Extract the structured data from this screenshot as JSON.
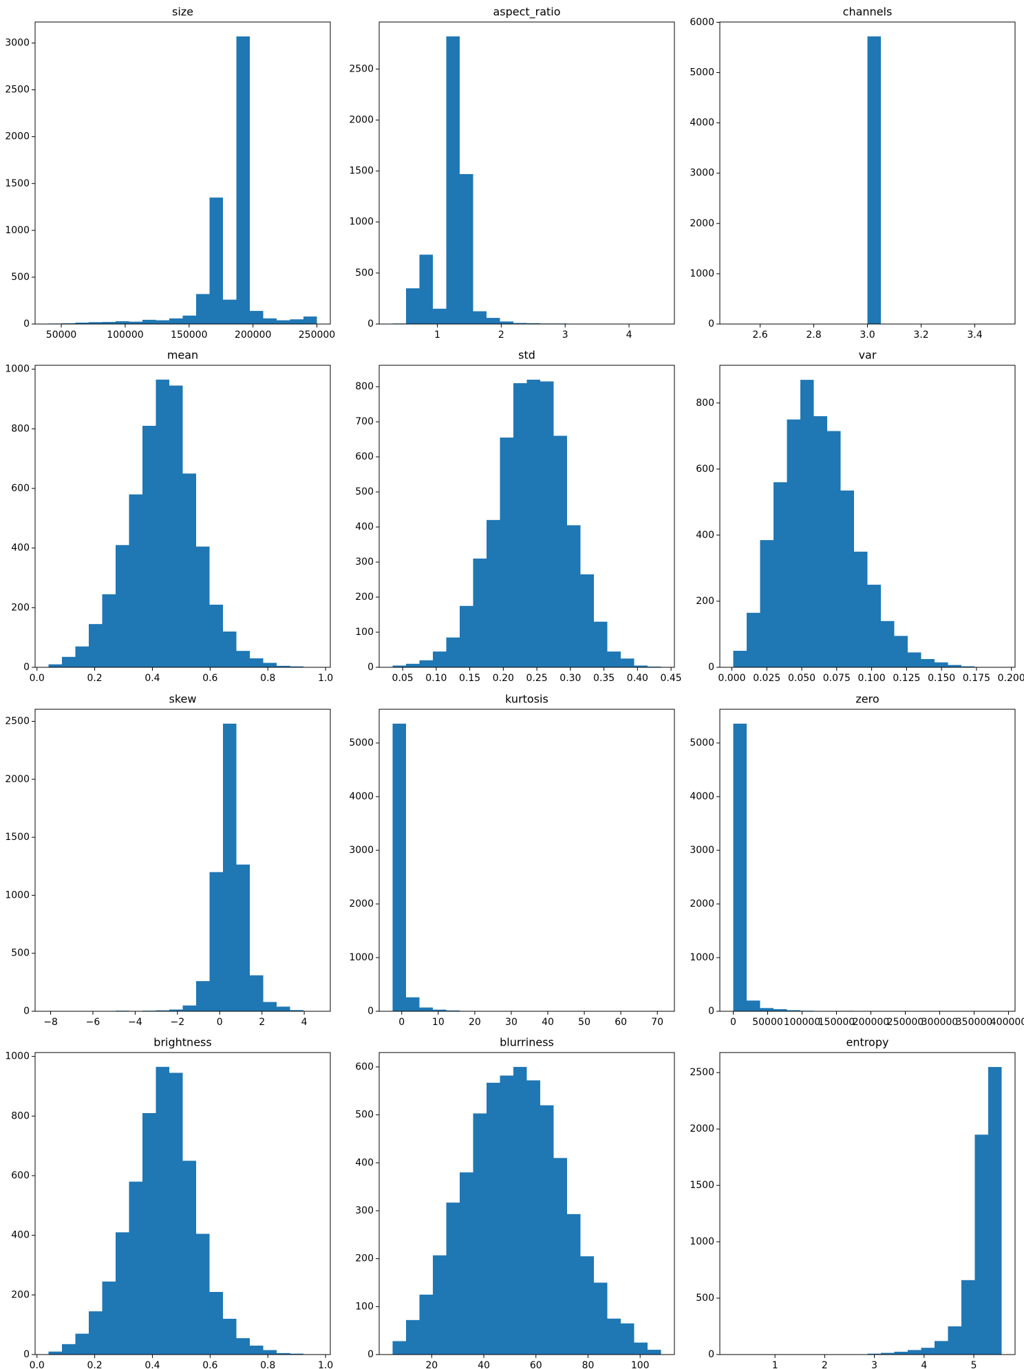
{
  "chart_data": [
    {
      "type": "histogram",
      "title": "size",
      "color": "#1f77b4",
      "bins": [
        40000,
        50500,
        61000,
        71500,
        82000,
        92500,
        103000,
        113500,
        124000,
        134500,
        145000,
        155500,
        166000,
        176500,
        187000,
        197500,
        208000,
        218500,
        229000,
        239500,
        250000
      ],
      "values": [
        5,
        8,
        15,
        20,
        22,
        30,
        25,
        45,
        40,
        60,
        90,
        320,
        1350,
        260,
        3070,
        140,
        60,
        40,
        50,
        80
      ],
      "xlim": [
        29500,
        260500
      ],
      "ylim": [
        0,
        3224
      ],
      "xticks": [
        50000,
        100000,
        150000,
        200000,
        250000
      ],
      "yticks": [
        0,
        500,
        1000,
        1500,
        2000,
        2500,
        3000
      ]
    },
    {
      "type": "histogram",
      "title": "aspect_ratio",
      "color": "#1f77b4",
      "bins": [
        0.3,
        0.51,
        0.72,
        0.93,
        1.14,
        1.35,
        1.56,
        1.77,
        1.98,
        2.19,
        2.4,
        2.61,
        2.82,
        3.03,
        3.24,
        3.45,
        3.66,
        3.87,
        4.08,
        4.29,
        4.5
      ],
      "values": [
        5,
        350,
        680,
        150,
        2820,
        1470,
        125,
        60,
        25,
        10,
        8,
        5,
        5,
        3,
        3,
        2,
        1,
        1,
        1,
        2
      ],
      "xlim": [
        0.09,
        4.71
      ],
      "ylim": [
        0,
        2961
      ],
      "xticks": [
        1,
        2,
        3,
        4
      ],
      "yticks": [
        0,
        500,
        1000,
        1500,
        2000,
        2500
      ]
    },
    {
      "type": "histogram",
      "title": "channels",
      "color": "#1f77b4",
      "bins": [
        2.5,
        2.55,
        2.6,
        2.65,
        2.7,
        2.75,
        2.8,
        2.85,
        2.9,
        2.95,
        3.0,
        3.05,
        3.1,
        3.15,
        3.2,
        3.25,
        3.3,
        3.35,
        3.4,
        3.45,
        3.5
      ],
      "values": [
        0,
        0,
        0,
        0,
        0,
        0,
        0,
        0,
        0,
        0,
        5720,
        0,
        0,
        0,
        0,
        0,
        0,
        0,
        0,
        0
      ],
      "xlim": [
        2.45,
        3.55
      ],
      "ylim": [
        0,
        6006
      ],
      "xticks": [
        2.6,
        2.8,
        {
          "value": 3,
          "label": "3.0"
        },
        3.2,
        3.4
      ],
      "yticks": [
        0,
        1000,
        2000,
        3000,
        4000,
        5000,
        6000
      ]
    },
    {
      "type": "histogram",
      "title": "mean",
      "color": "#1f77b4",
      "bins": [
        0.04,
        0.0865,
        0.133,
        0.1795,
        0.226,
        0.2725,
        0.319,
        0.3655,
        0.412,
        0.4585,
        0.505,
        0.5515,
        0.598,
        0.6445,
        0.691,
        0.7375,
        0.784,
        0.8305,
        0.877,
        0.9235,
        0.97
      ],
      "values": [
        10,
        35,
        70,
        145,
        245,
        410,
        580,
        810,
        965,
        945,
        650,
        405,
        210,
        120,
        55,
        30,
        15,
        5,
        3,
        1
      ],
      "xlim": [
        -0.0065,
        1.0165
      ],
      "ylim": [
        0,
        1013
      ],
      "xticks": [
        {
          "value": 0,
          "label": "0.0"
        },
        0.2,
        0.4,
        0.6,
        0.8,
        {
          "value": 1,
          "label": "1.0"
        }
      ],
      "yticks": [
        0,
        200,
        400,
        600,
        800,
        1000
      ]
    },
    {
      "type": "histogram",
      "title": "std",
      "color": "#1f77b4",
      "bins": [
        0.035,
        0.055,
        0.075,
        0.095,
        0.115,
        0.135,
        0.155,
        0.175,
        0.195,
        0.215,
        0.235,
        0.255,
        0.275,
        0.295,
        0.315,
        0.335,
        0.355,
        0.375,
        0.395,
        0.415,
        0.435
      ],
      "values": [
        5,
        10,
        20,
        45,
        85,
        175,
        310,
        420,
        655,
        810,
        820,
        815,
        660,
        405,
        265,
        130,
        45,
        25,
        5,
        2
      ],
      "xlim": [
        0.015,
        0.455
      ],
      "ylim": [
        0,
        861
      ],
      "xticks": [
        0.05,
        {
          "value": 0.1,
          "label": "0.10"
        },
        0.15,
        {
          "value": 0.2,
          "label": "0.20"
        },
        0.25,
        {
          "value": 0.3,
          "label": "0.30"
        },
        0.35,
        {
          "value": 0.4,
          "label": "0.40"
        },
        0.45
      ],
      "yticks": [
        0,
        100,
        200,
        300,
        400,
        500,
        600,
        700,
        800
      ]
    },
    {
      "type": "histogram",
      "title": "var",
      "color": "#1f77b4",
      "bins": [
        0.001,
        0.0106,
        0.0202,
        0.0298,
        0.0394,
        0.049,
        0.0586,
        0.0682,
        0.0778,
        0.0874,
        0.097,
        0.1066,
        0.1162,
        0.1258,
        0.1354,
        0.145,
        0.1546,
        0.1642,
        0.1738,
        0.1834,
        0.193
      ],
      "values": [
        50,
        165,
        385,
        560,
        750,
        870,
        760,
        715,
        535,
        350,
        250,
        140,
        95,
        45,
        25,
        15,
        7,
        3,
        1,
        1
      ],
      "xlim": [
        -0.0086,
        0.2026
      ],
      "ylim": [
        0,
        914
      ],
      "xticks": [
        {
          "value": 0,
          "label": "0.000"
        },
        0.025,
        {
          "value": 0.05,
          "label": "0.050"
        },
        0.075,
        {
          "value": 0.1,
          "label": "0.100"
        },
        0.125,
        {
          "value": 0.15,
          "label": "0.150"
        },
        0.175,
        {
          "value": 0.2,
          "label": "0.200"
        }
      ],
      "yticks": [
        0,
        200,
        400,
        600,
        800
      ]
    },
    {
      "type": "histogram",
      "title": "skew",
      "color": "#1f77b4",
      "bins": [
        -8.1,
        -7.465,
        -6.83,
        -6.195,
        -5.56,
        -4.925,
        -4.29,
        -3.655,
        -3.02,
        -2.385,
        -1.75,
        -1.115,
        -0.48,
        0.155,
        0.79,
        1.425,
        2.06,
        2.695,
        3.33,
        3.965,
        4.6
      ],
      "values": [
        1,
        0,
        1,
        1,
        2,
        5,
        3,
        5,
        8,
        15,
        50,
        260,
        1200,
        2480,
        1265,
        310,
        80,
        40,
        10,
        2
      ],
      "xlim": [
        -8.735,
        5.235
      ],
      "ylim": [
        0,
        2604
      ],
      "xticks": [
        {
          "value": -8,
          "label": "−8"
        },
        {
          "value": -6,
          "label": "−6"
        },
        {
          "value": -4,
          "label": "−4"
        },
        {
          "value": -2,
          "label": "−2"
        },
        0,
        2,
        4
      ],
      "yticks": [
        0,
        500,
        1000,
        1500,
        2000,
        2500
      ]
    },
    {
      "type": "histogram",
      "title": "kurtosis",
      "color": "#1f77b4",
      "bins": [
        -2.5,
        1.175,
        4.85,
        8.525,
        12.2,
        15.875,
        19.55,
        23.225,
        26.9,
        30.575,
        34.25,
        37.925,
        41.6,
        45.275,
        48.95,
        52.625,
        56.3,
        59.975,
        63.65,
        67.325,
        71
      ],
      "values": [
        5360,
        260,
        70,
        30,
        15,
        7,
        4,
        3,
        2,
        1,
        1,
        1,
        0,
        0,
        0,
        0,
        0,
        0,
        0,
        1
      ],
      "xlim": [
        -6.175,
        74.675
      ],
      "ylim": [
        0,
        5628
      ],
      "xticks": [
        0,
        10,
        20,
        30,
        40,
        50,
        60,
        70
      ],
      "yticks": [
        0,
        1000,
        2000,
        3000,
        4000,
        5000
      ]
    },
    {
      "type": "histogram",
      "title": "zero",
      "color": "#1f77b4",
      "bins": [
        0,
        19500,
        39000,
        58500,
        78000,
        97500,
        117000,
        136500,
        156000,
        175500,
        195000,
        214500,
        234000,
        253500,
        273000,
        292500,
        312000,
        331500,
        351000,
        370500,
        390000
      ],
      "values": [
        5360,
        200,
        60,
        40,
        20,
        10,
        5,
        4,
        8,
        3,
        2,
        1,
        1,
        0,
        0,
        1,
        0,
        0,
        0,
        1
      ],
      "xlim": [
        -19500,
        409500
      ],
      "ylim": [
        0,
        5628
      ],
      "xticks": [
        0,
        50000,
        100000,
        150000,
        200000,
        250000,
        300000,
        350000,
        400000
      ],
      "yticks": [
        0,
        1000,
        2000,
        3000,
        4000,
        5000
      ]
    },
    {
      "type": "histogram",
      "title": "brightness",
      "color": "#1f77b4",
      "bins": [
        0.04,
        0.0865,
        0.133,
        0.1795,
        0.226,
        0.2725,
        0.319,
        0.3655,
        0.412,
        0.4585,
        0.505,
        0.5515,
        0.598,
        0.6445,
        0.691,
        0.7375,
        0.784,
        0.8305,
        0.877,
        0.9235,
        0.97
      ],
      "values": [
        10,
        35,
        70,
        145,
        245,
        410,
        580,
        810,
        965,
        945,
        650,
        405,
        210,
        120,
        55,
        30,
        15,
        5,
        3,
        1
      ],
      "xlim": [
        -0.0065,
        1.0165
      ],
      "ylim": [
        0,
        1013
      ],
      "xticks": [
        {
          "value": 0,
          "label": "0.0"
        },
        0.2,
        0.4,
        0.6,
        0.8,
        {
          "value": 1,
          "label": "1.0"
        }
      ],
      "yticks": [
        0,
        200,
        400,
        600,
        800,
        1000
      ]
    },
    {
      "type": "histogram",
      "title": "blurriness",
      "color": "#1f77b4",
      "bins": [
        5,
        10.15,
        15.3,
        20.45,
        25.6,
        30.75,
        35.9,
        41.05,
        46.2,
        51.35,
        56.5,
        61.65,
        66.8,
        71.95,
        77.1,
        82.25,
        87.4,
        92.55,
        97.7,
        102.85,
        108
      ],
      "values": [
        28,
        72,
        125,
        207,
        317,
        380,
        503,
        567,
        582,
        600,
        572,
        520,
        410,
        293,
        205,
        150,
        75,
        65,
        25,
        10
      ],
      "xlim": [
        -0.15,
        113.15
      ],
      "ylim": [
        0,
        630
      ],
      "xticks": [
        20,
        40,
        60,
        80,
        100
      ],
      "yticks": [
        0,
        100,
        200,
        300,
        400,
        500,
        600
      ]
    },
    {
      "type": "histogram",
      "title": "entropy",
      "color": "#1f77b4",
      "bins": [
        0.16,
        0.43,
        0.7,
        0.97,
        1.24,
        1.51,
        1.78,
        2.05,
        2.32,
        2.59,
        2.86,
        3.13,
        3.4,
        3.67,
        3.94,
        4.21,
        4.48,
        4.75,
        5.02,
        5.29,
        5.56
      ],
      "values": [
        1,
        0,
        0,
        0,
        0,
        0,
        0,
        1,
        1,
        3,
        8,
        15,
        25,
        40,
        60,
        120,
        250,
        660,
        1950,
        2550
      ],
      "xlim": [
        -0.11,
        5.83
      ],
      "ylim": [
        0,
        2678
      ],
      "xticks": [
        1,
        2,
        3,
        4,
        5
      ],
      "yticks": [
        0,
        500,
        1000,
        1500,
        2000,
        2500
      ]
    }
  ]
}
